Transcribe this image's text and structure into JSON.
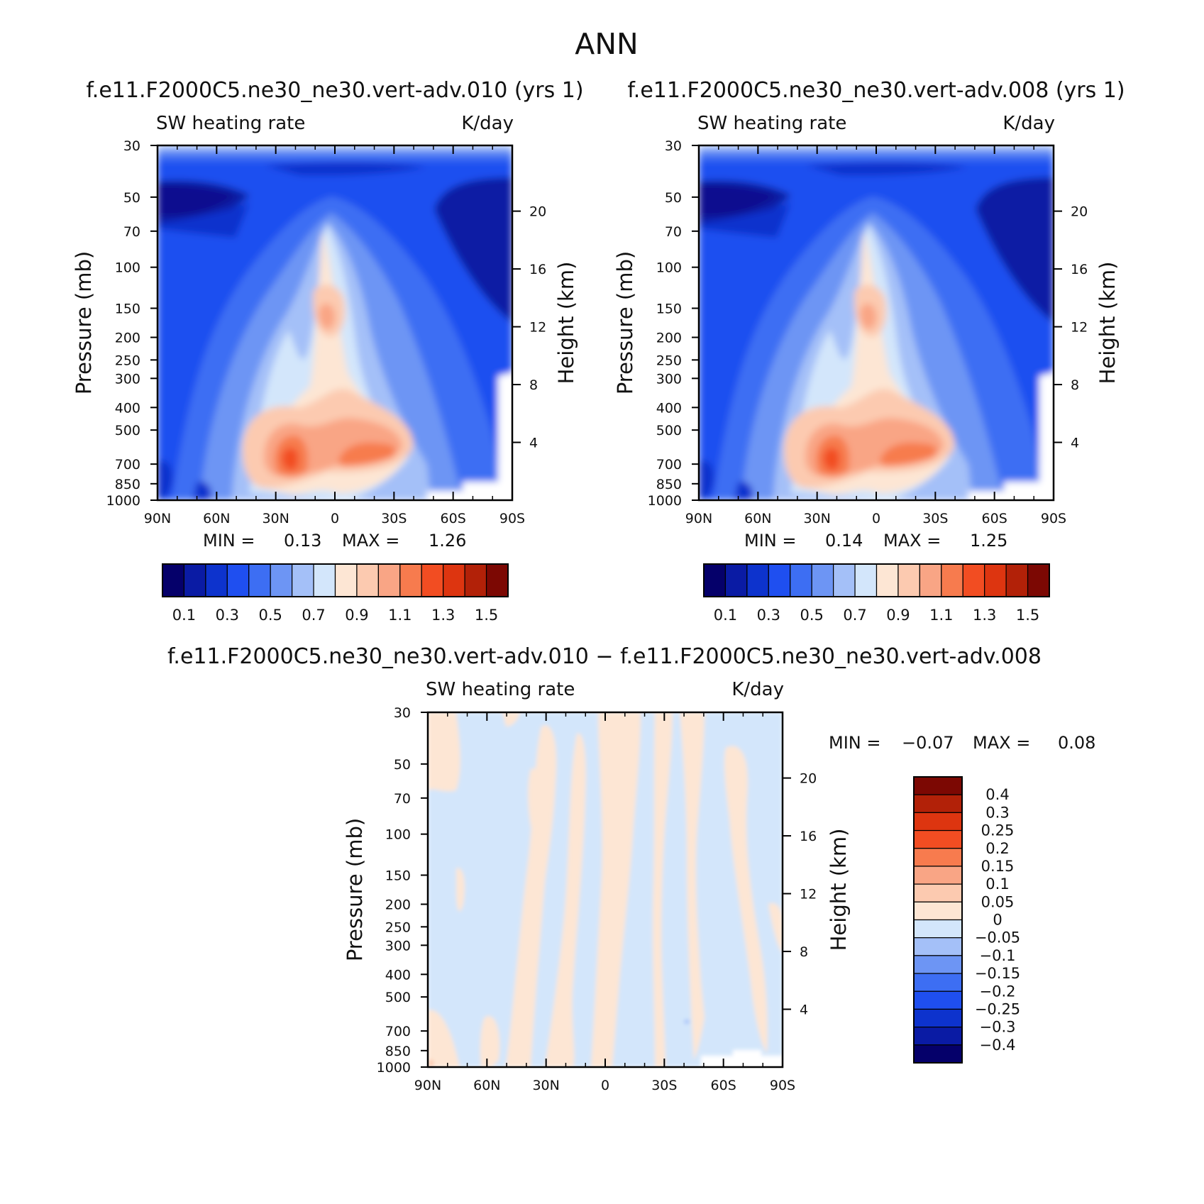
{
  "figure": {
    "title": "ANN"
  },
  "chart_data": [
    {
      "type": "heatmap",
      "id": "panel1",
      "case_title": "f.e11.F2000C5.ne30_ne30.vert-adv.010 (yrs 1)",
      "left_label": "SW heating rate",
      "right_label": "K/day",
      "xlabel": "",
      "ylabel": "Pressure (mb)",
      "y2label": "Height (km)",
      "x_ticks": [
        "90N",
        "60N",
        "30N",
        "0",
        "30S",
        "60S",
        "90S"
      ],
      "y_ticks": [
        "30",
        "50",
        "70",
        "100",
        "150",
        "200",
        "250",
        "300",
        "400",
        "500",
        "700",
        "850",
        "1000"
      ],
      "y2_ticks": [
        "20",
        "16",
        "12",
        "8",
        "4"
      ],
      "ylim": [
        1000,
        30
      ],
      "min_label": "MIN =",
      "min_value": "0.13",
      "max_label": "MAX =",
      "max_value": "1.26",
      "colorbar_ticks": [
        "0.1",
        "0.3",
        "0.5",
        "0.7",
        "0.9",
        "1.1",
        "1.3",
        "1.5"
      ],
      "levels": [
        0.1,
        0.2,
        0.3,
        0.4,
        0.5,
        0.6,
        0.7,
        0.8,
        0.9,
        1.0,
        1.1,
        1.2,
        1.3,
        1.4,
        1.5
      ]
    },
    {
      "type": "heatmap",
      "id": "panel2",
      "case_title": "f.e11.F2000C5.ne30_ne30.vert-adv.008 (yrs 1)",
      "left_label": "SW heating rate",
      "right_label": "K/day",
      "xlabel": "",
      "ylabel": "Pressure (mb)",
      "y2label": "Height (km)",
      "x_ticks": [
        "90N",
        "60N",
        "30N",
        "0",
        "30S",
        "60S",
        "90S"
      ],
      "y_ticks": [
        "30",
        "50",
        "70",
        "100",
        "150",
        "200",
        "250",
        "300",
        "400",
        "500",
        "700",
        "850",
        "1000"
      ],
      "y2_ticks": [
        "20",
        "16",
        "12",
        "8",
        "4"
      ],
      "ylim": [
        1000,
        30
      ],
      "min_label": "MIN =",
      "min_value": "0.14",
      "max_label": "MAX =",
      "max_value": "1.25",
      "colorbar_ticks": [
        "0.1",
        "0.3",
        "0.5",
        "0.7",
        "0.9",
        "1.1",
        "1.3",
        "1.5"
      ],
      "levels": [
        0.1,
        0.2,
        0.3,
        0.4,
        0.5,
        0.6,
        0.7,
        0.8,
        0.9,
        1.0,
        1.1,
        1.2,
        1.3,
        1.4,
        1.5
      ]
    },
    {
      "type": "heatmap",
      "id": "panel3",
      "case_title": "f.e11.F2000C5.ne30_ne30.vert-adv.010 − f.e11.F2000C5.ne30_ne30.vert-adv.008",
      "left_label": "SW heating rate",
      "right_label": "K/day",
      "xlabel": "",
      "ylabel": "Pressure (mb)",
      "y2label": "Height (km)",
      "x_ticks": [
        "90N",
        "60N",
        "30N",
        "0",
        "30S",
        "60S",
        "90S"
      ],
      "y_ticks": [
        "30",
        "50",
        "70",
        "100",
        "150",
        "200",
        "250",
        "300",
        "400",
        "500",
        "700",
        "850",
        "1000"
      ],
      "y2_ticks": [
        "20",
        "16",
        "12",
        "8",
        "4"
      ],
      "ylim": [
        1000,
        30
      ],
      "min_label": "MIN =",
      "min_value": "−0.07",
      "max_label": "MAX =",
      "max_value": "0.08",
      "colorbar_ticks": [
        "0.4",
        "0.3",
        "0.25",
        "0.2",
        "0.15",
        "0.1",
        "0.05",
        "0",
        "−0.05",
        "−0.1",
        "−0.15",
        "−0.2",
        "−0.25",
        "−0.3",
        "−0.4"
      ],
      "levels": [
        0.4,
        0.3,
        0.25,
        0.2,
        0.15,
        0.1,
        0.05,
        0,
        -0.05,
        -0.1,
        -0.15,
        -0.2,
        -0.25,
        -0.3,
        -0.4
      ]
    }
  ],
  "colors": {
    "seq": [
      "#05006a",
      "#0a1ba4",
      "#0d33cd",
      "#1f4ff0",
      "#3d6ef3",
      "#6d95f4",
      "#a4c0f8",
      "#d3e6fb",
      "#fde6d4",
      "#fccab0",
      "#f9a585",
      "#f77b4e",
      "#f24d22",
      "#dd3510",
      "#b22108",
      "#7c0803"
    ],
    "diff": [
      "#7c0803",
      "#b22108",
      "#dd3510",
      "#f24d22",
      "#f77b4e",
      "#f9a585",
      "#fccab0",
      "#fde6d4",
      "#d3e6fb",
      "#a4c0f8",
      "#6d95f4",
      "#3d6ef3",
      "#1f4ff0",
      "#0d33cd",
      "#0a1ba4",
      "#05006a"
    ]
  }
}
